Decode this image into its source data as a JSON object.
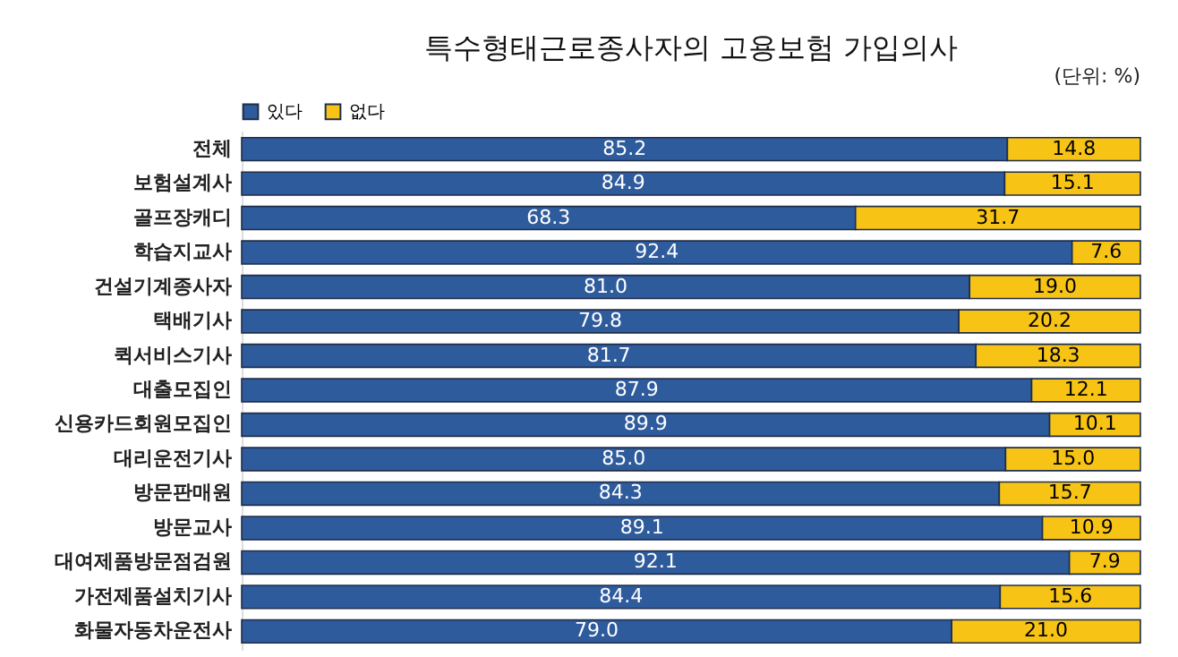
{
  "chart_data": {
    "type": "bar",
    "orientation": "horizontal",
    "stacked": true,
    "title": "특수형태근로종사자의 고용보험 가입의사",
    "annotations": [
      "(단위: %)"
    ],
    "legend": "top",
    "categories": [
      "전체",
      "보험설계사",
      "골프장캐디",
      "학습지교사",
      "건설기계종사자",
      "택배기사",
      "퀵서비스기사",
      "대출모집인",
      "신용카드회원모집인",
      "대리운전기사",
      "방문판매원",
      "방문교사",
      "대여제품방문점검원",
      "가전제품설치기사",
      "화물자동차운전사"
    ],
    "series": [
      {
        "name": "있다",
        "color": "#2e5b9c",
        "values": [
          85.2,
          84.9,
          68.3,
          92.4,
          81.0,
          79.8,
          81.7,
          87.9,
          89.9,
          85.0,
          84.3,
          89.1,
          92.1,
          84.4,
          79.0
        ],
        "value_labels": [
          "85.2",
          "84.9",
          "68.3",
          "92.4",
          "81.0",
          "79.8",
          "81.7",
          "87.9",
          "89.9",
          "85.0",
          "84.3",
          "89.1",
          "92.1",
          "84.4",
          "79.0"
        ]
      },
      {
        "name": "없다",
        "color": "#f7c416",
        "values": [
          14.8,
          15.1,
          31.7,
          7.6,
          19.0,
          20.2,
          18.3,
          12.1,
          10.1,
          15.0,
          15.7,
          10.9,
          7.9,
          15.6,
          21.0
        ],
        "value_labels": [
          "14.8",
          "15.1",
          "31.7",
          "7.6",
          "19.0",
          "20.2",
          "18.3",
          "12.1",
          "10.1",
          "15.0",
          "15.7",
          "10.9",
          "7.9",
          "15.6",
          "21.0"
        ]
      }
    ]
  }
}
